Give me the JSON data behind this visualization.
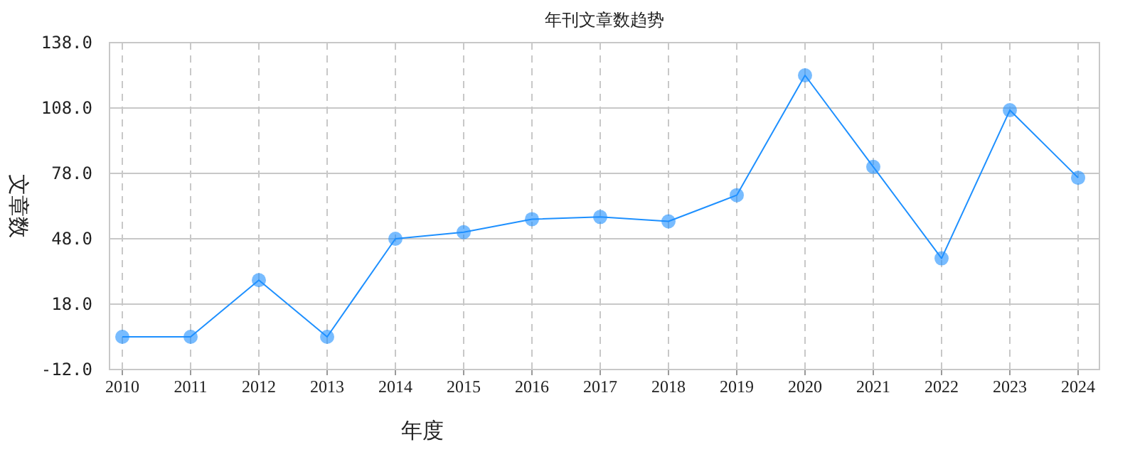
{
  "chart_data": {
    "type": "line",
    "title": "年刊文章数趋势",
    "xlabel": "年度",
    "ylabel": "文章数",
    "categories": [
      "2010",
      "2011",
      "2012",
      "2013",
      "2014",
      "2015",
      "2016",
      "2017",
      "2018",
      "2019",
      "2020",
      "2021",
      "2022",
      "2023",
      "2024"
    ],
    "series": [
      {
        "color": "#1e90ff",
        "values": [
          3,
          3,
          29,
          3,
          48,
          51,
          57,
          58,
          56,
          68,
          123,
          81,
          39,
          107,
          76
        ]
      }
    ],
    "marker": "circle",
    "grid": true,
    "ylim": [
      -12,
      138
    ],
    "yticks": [
      {
        "value": -12,
        "label": "-12.0"
      },
      {
        "value": 18,
        "label": "18.0"
      },
      {
        "value": 48,
        "label": "48.0"
      },
      {
        "value": 78,
        "label": "78.0"
      },
      {
        "value": 108,
        "label": "108.0"
      },
      {
        "value": 138,
        "label": "138.0"
      }
    ]
  }
}
